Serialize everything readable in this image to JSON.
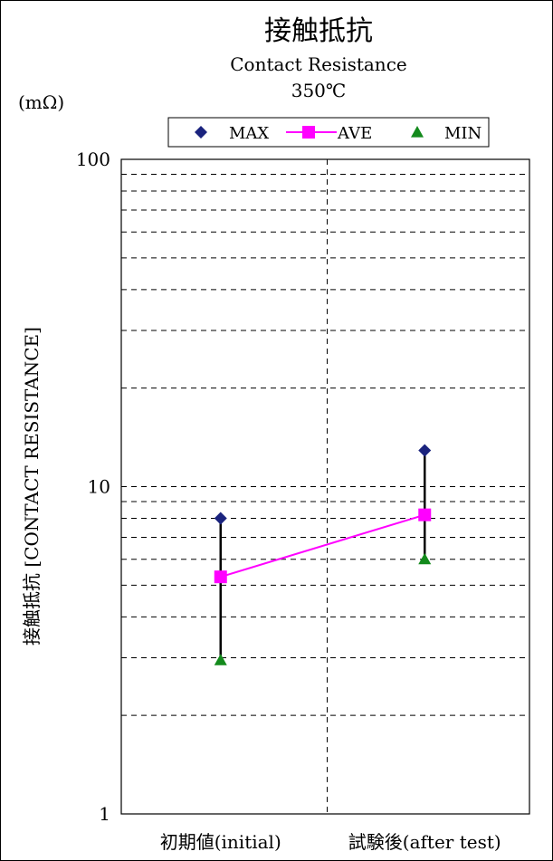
{
  "chart_data": {
    "type": "line",
    "title": "接触抵抗",
    "subtitle": "Contact Resistance",
    "condition": "350℃",
    "unit_label": "(mΩ)",
    "ylabel": "接触抵抗 [CONTACT RESISTANCE]",
    "xlabel": "",
    "categories": [
      "初期値(initial)",
      "試験後(after test)"
    ],
    "y_scale": "log",
    "ylim": [
      1,
      100
    ],
    "y_ticks": [
      1,
      10,
      100
    ],
    "y_tick_labels": [
      "1",
      "10",
      "100"
    ],
    "grid": "dashed, log minor",
    "legend_position": "top",
    "series": [
      {
        "name": "MAX",
        "marker": "diamond",
        "color": "#1a237e",
        "line": false,
        "values": [
          8.0,
          12.9
        ]
      },
      {
        "name": "AVE",
        "marker": "square",
        "color": "#ff00ff",
        "line": true,
        "values": [
          5.3,
          8.2
        ]
      },
      {
        "name": "MIN",
        "marker": "triangle",
        "color": "#138a1c",
        "line": false,
        "values": [
          2.95,
          6.0
        ]
      }
    ],
    "range_bars": true
  }
}
